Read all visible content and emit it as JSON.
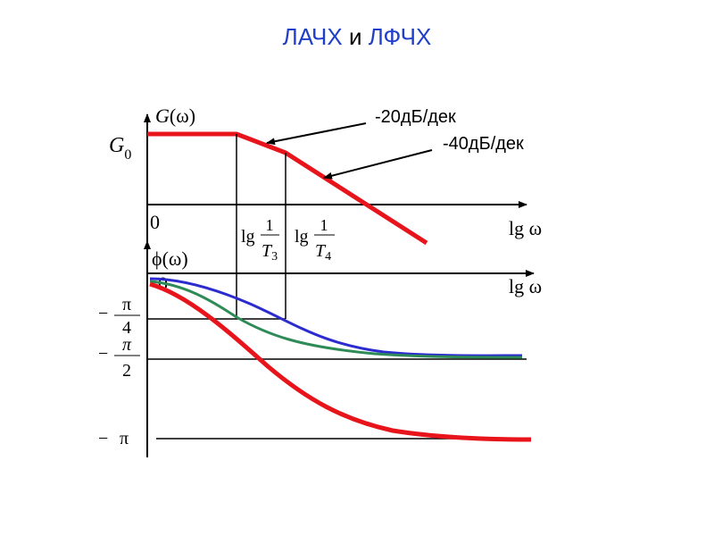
{
  "title": {
    "part1": "ЛАЧХ",
    "conj": "и",
    "part2": "ЛФЧХ"
  },
  "amplitude_plot": {
    "y_axis_label": "G(ω)",
    "y_axis_label_G": "G",
    "y_axis_label_arg": "(ω)",
    "g0_label_main": "G",
    "g0_label_sub": "0",
    "origin_label": "0",
    "x_axis_label": "lg ω",
    "tick1": {
      "lg": "lg",
      "num": "1",
      "den_main": "T",
      "den_sub": "3"
    },
    "tick2": {
      "lg": "lg",
      "num": "1",
      "den_main": "T",
      "den_sub": "4"
    },
    "slope_label_1": "-20дБ/дек",
    "slope_label_2": "-40дБ/дек"
  },
  "phase_plot": {
    "y_axis_label": "ϕ(ω)",
    "origin_label": "0",
    "x_axis_label": "lg ω",
    "levels": [
      {
        "sign": "−",
        "num": "π",
        "den": "4"
      },
      {
        "sign": "−",
        "num": "π",
        "den": "2"
      },
      {
        "sign": "−",
        "num": "π",
        "den": ""
      }
    ]
  },
  "colors": {
    "title": "#1f3fc8",
    "lafc": "#e8141c",
    "phase_blue": "#2b2bd0",
    "phase_green": "#2e8b57",
    "phase_red": "#e8141c",
    "axes": "#000000"
  }
}
